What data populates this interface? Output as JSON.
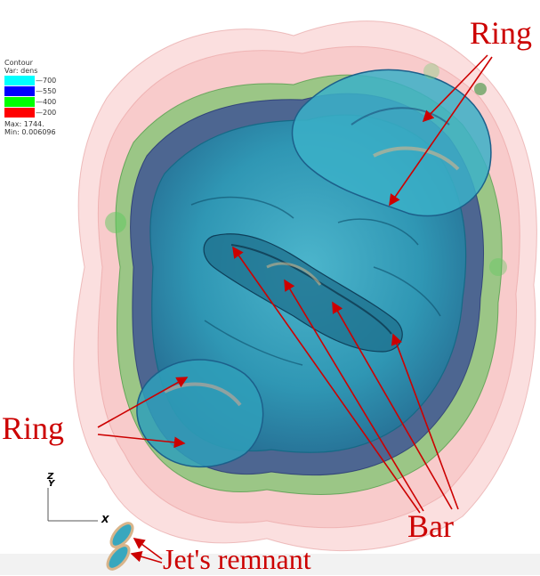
{
  "legend": {
    "title": "Contour",
    "variable": "Var: dens",
    "levels": [
      {
        "value": "700",
        "color": "#00ffff"
      },
      {
        "value": "550",
        "color": "#0000ff"
      },
      {
        "value": "400",
        "color": "#00ff00"
      },
      {
        "value": "200",
        "color": "#ff0000"
      }
    ],
    "max": "Max: 1744.",
    "min": "Min: 0.006096"
  },
  "labels": {
    "ring_top": "Ring",
    "ring_left": "Ring",
    "bar": "Bar",
    "jet": "Jet's remnant"
  },
  "axes": {
    "z": "Z",
    "y": "Y",
    "x": "X"
  },
  "colors": {
    "annotation": "#cc0000",
    "outer_shell": "#f4a6a6",
    "mid_shell": "#5ec95e",
    "inner_shell": "#2f3f9a",
    "core": "#2aa7bf"
  }
}
